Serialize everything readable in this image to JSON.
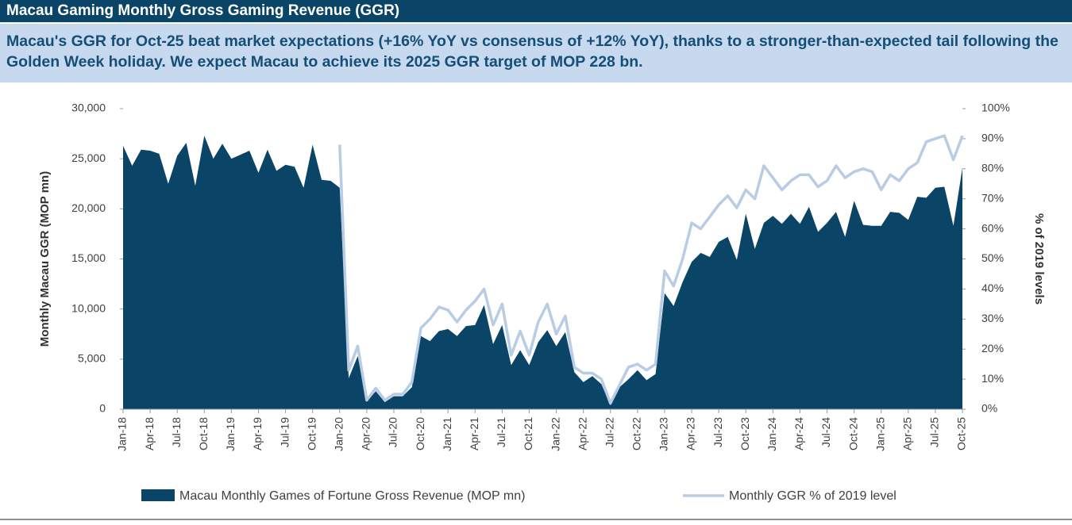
{
  "chart_data": {
    "type": "area",
    "title": "Macau Gaming Monthly Gross Gaming Revenue (GGR)",
    "subtitle": "Macau's GGR for Oct-25 beat market expectations (+16% YoY vs consensus of +12% YoY), thanks to a stronger-than-expected tail following the Golden Week holiday. We expect Macau to achieve its 2025 GGR target of MOP 228 bn.",
    "ylabel": "Monthly Macau  GGR (MOP mn)",
    "y2label": "% of 2019 levels",
    "categories": [
      "Jan-18",
      null,
      null,
      "Apr-18",
      null,
      null,
      "Jul-18",
      null,
      null,
      "Oct-18",
      null,
      null,
      "Jan-19",
      null,
      null,
      "Apr-19",
      null,
      null,
      "Jul-19",
      null,
      null,
      "Oct-19",
      null,
      null,
      "Jan-20",
      null,
      null,
      "Apr-20",
      null,
      null,
      "Jul-20",
      null,
      null,
      "Oct-20",
      null,
      null,
      "Jan-21",
      null,
      null,
      "Apr-21",
      null,
      null,
      "Jul-21",
      null,
      null,
      "Oct-21",
      null,
      null,
      "Jan-22",
      null,
      null,
      "Apr-22",
      null,
      null,
      "Jul-22",
      null,
      null,
      "Oct-22",
      null,
      null,
      "Jan-23",
      null,
      null,
      "Apr-23",
      null,
      null,
      "Jul-23",
      null,
      null,
      "Oct-23",
      null,
      null,
      "Jan-24",
      null,
      null,
      "Apr-24",
      null,
      null,
      "Jul-24",
      null,
      null,
      "Oct-24",
      null,
      null,
      "Jan-25",
      null,
      null,
      "Apr-25",
      null,
      null,
      "Jul-25",
      null,
      null,
      "Oct-25"
    ],
    "series": [
      {
        "name": "Macau Monthly Games of Fortune Gross Revenue (MOP mn)",
        "type": "area",
        "color": "#0a4567",
        "values": [
          26300,
          24300,
          25900,
          25800,
          25500,
          22500,
          25300,
          26600,
          22300,
          27300,
          25000,
          26500,
          25000,
          25400,
          25800,
          23600,
          25900,
          23800,
          24400,
          24200,
          22100,
          26400,
          22900,
          22800,
          22100,
          3100,
          5300,
          750,
          1800,
          700,
          1300,
          1300,
          2200,
          7300,
          6800,
          7800,
          8000,
          7300,
          8300,
          8400,
          10400,
          6500,
          8400,
          4400,
          5900,
          4400,
          6700,
          7900,
          6300,
          7700,
          3700,
          2700,
          3300,
          2500,
          400,
          2200,
          3000,
          3900,
          2900,
          3500,
          11600,
          10300,
          12700,
          14700,
          15600,
          15200,
          16700,
          17200,
          14900,
          19500,
          16000,
          18600,
          19300,
          18500,
          19500,
          18500,
          20200,
          17700,
          18600,
          19700,
          17200,
          20800,
          18400,
          18300,
          18300,
          19700,
          19600,
          18900,
          21200,
          21100,
          22100,
          22200,
          18300,
          24100
        ]
      },
      {
        "name": "Monthly GGR % of 2019 level",
        "type": "line",
        "axis": "y2",
        "color": "#b8cce4",
        "values": [
          null,
          null,
          null,
          null,
          null,
          null,
          null,
          null,
          null,
          null,
          null,
          null,
          null,
          null,
          null,
          null,
          null,
          null,
          null,
          null,
          null,
          null,
          null,
          null,
          88,
          13,
          21,
          3,
          7,
          3,
          5,
          5,
          9,
          27,
          30,
          34,
          33,
          29,
          33,
          36,
          40,
          28,
          35,
          18,
          26,
          18,
          29,
          35,
          25,
          31,
          14,
          12,
          12,
          10,
          2,
          8,
          14,
          15,
          13,
          15,
          46,
          41,
          50,
          62,
          60,
          64,
          68,
          71,
          67,
          73,
          70,
          81,
          77,
          73,
          76,
          78,
          78,
          74,
          76,
          81,
          77,
          79,
          80,
          79,
          73,
          78,
          76,
          80,
          82,
          89,
          90,
          91,
          83,
          91
        ]
      }
    ],
    "ylim": [
      0,
      30000
    ],
    "yticks": [
      0,
      {
        "value": 5000,
        "label": "5,000"
      },
      {
        "value": 10000,
        "label": "10,000"
      },
      {
        "value": 15000,
        "label": "15,000"
      },
      {
        "value": 20000,
        "label": "20,000"
      },
      {
        "value": 25000,
        "label": "25,000"
      },
      {
        "value": 30000,
        "label": "30,000"
      }
    ],
    "y2lim": [
      0,
      100
    ],
    "y2ticks": [
      {
        "value": 0,
        "label": "0%"
      },
      {
        "value": 10,
        "label": "10%"
      },
      {
        "value": 20,
        "label": "20%"
      },
      {
        "value": 30,
        "label": "30%"
      },
      {
        "value": 40,
        "label": "40%"
      },
      {
        "value": 50,
        "label": "50%"
      },
      {
        "value": 60,
        "label": "60%"
      },
      {
        "value": 70,
        "label": "70%"
      },
      {
        "value": 80,
        "label": "80%"
      },
      {
        "value": 90,
        "label": "90%"
      },
      {
        "value": 100,
        "label": "100%"
      }
    ],
    "legend": "bottom"
  }
}
